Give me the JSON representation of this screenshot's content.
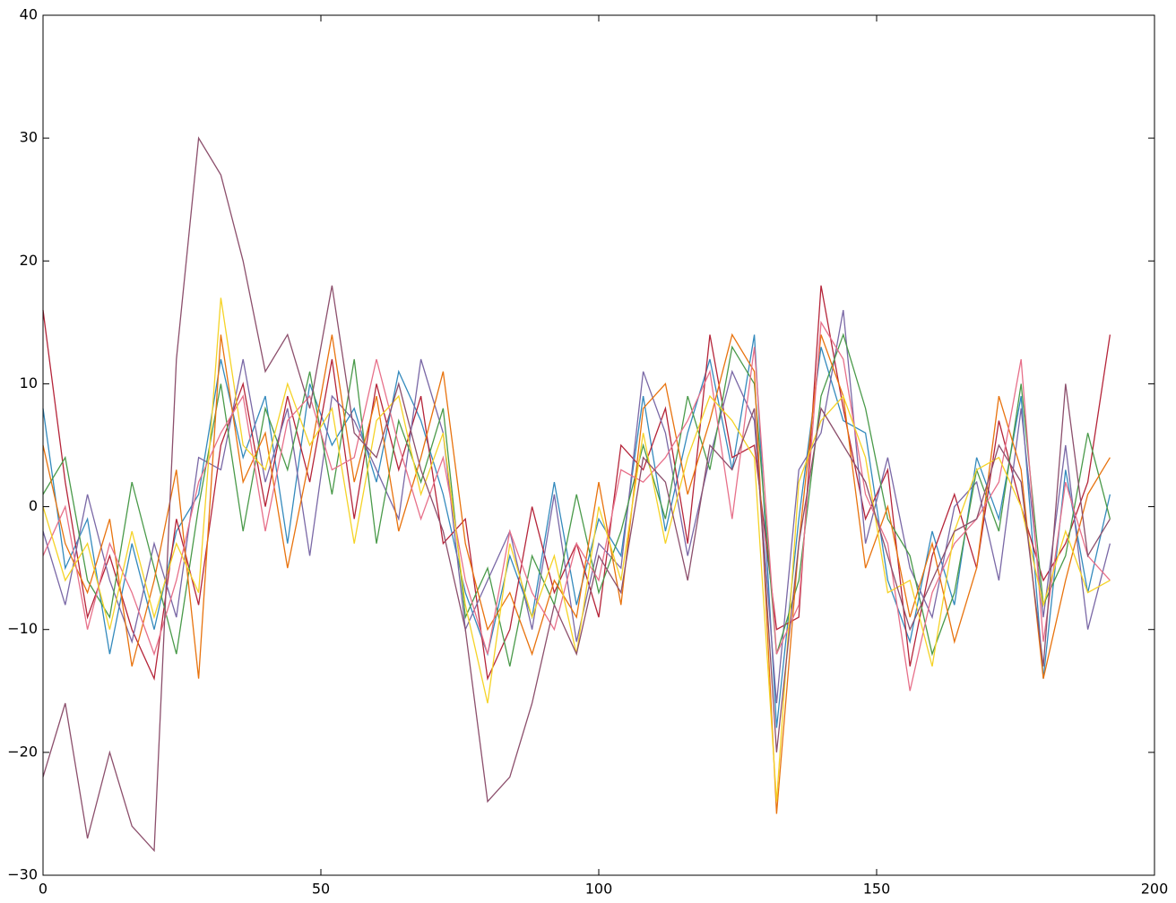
{
  "chart_data": {
    "type": "line",
    "x": [
      0,
      4,
      8,
      12,
      16,
      20,
      24,
      28,
      32,
      36,
      40,
      44,
      48,
      52,
      56,
      60,
      64,
      68,
      72,
      76,
      80,
      84,
      88,
      92,
      96,
      100,
      104,
      108,
      112,
      116,
      120,
      124,
      128,
      132,
      136,
      140,
      144,
      148,
      152,
      156,
      160,
      164,
      168,
      172,
      176,
      180,
      184,
      188,
      192
    ],
    "series": [
      {
        "color": "#348ABD",
        "values": [
          8,
          -5,
          -1,
          -12,
          -3,
          -10,
          -2,
          1,
          12,
          4,
          9,
          -3,
          10,
          5,
          8,
          2,
          11,
          7,
          1,
          -7,
          -12,
          -4,
          -9,
          2,
          -8,
          -1,
          -4,
          9,
          -2,
          6,
          12,
          3,
          14,
          -18,
          -1,
          13,
          7,
          6,
          -6,
          -11,
          -2,
          -8,
          4,
          -1,
          9,
          -14,
          3,
          -7,
          1
        ]
      },
      {
        "color": "#B5253A",
        "values": [
          16,
          2,
          -9,
          -4,
          -10,
          -14,
          -1,
          -8,
          5,
          10,
          0,
          9,
          2,
          12,
          -1,
          10,
          3,
          9,
          -3,
          -1,
          -14,
          -10,
          0,
          -7,
          -3,
          -9,
          5,
          3,
          8,
          -3,
          14,
          4,
          5,
          -10,
          -9,
          18,
          8,
          -1,
          3,
          -13,
          -4,
          1,
          -5,
          7,
          0,
          -6,
          -3,
          2,
          14
        ]
      },
      {
        "color": "#7A68A6",
        "values": [
          -2,
          -8,
          1,
          -6,
          -11,
          -3,
          -9,
          4,
          3,
          12,
          2,
          8,
          -4,
          9,
          7,
          3,
          -1,
          12,
          6,
          -10,
          -6,
          -2,
          -10,
          1,
          -11,
          -3,
          -5,
          11,
          6,
          -4,
          4,
          11,
          7,
          -16,
          3,
          6,
          16,
          -3,
          4,
          -5,
          -9,
          0,
          2,
          -6,
          8,
          -9,
          5,
          -10,
          -3
        ]
      },
      {
        "color": "#4A9A4A",
        "values": [
          1,
          4,
          -6,
          -9,
          2,
          -5,
          -12,
          0,
          10,
          -2,
          8,
          3,
          11,
          1,
          12,
          -3,
          7,
          2,
          8,
          -9,
          -5,
          -13,
          -4,
          -8,
          1,
          -7,
          -2,
          5,
          -1,
          9,
          3,
          13,
          10,
          -12,
          -6,
          9,
          14,
          8,
          -1,
          -4,
          -12,
          -7,
          3,
          -2,
          10,
          -8,
          -4,
          6,
          -1
        ]
      },
      {
        "color": "#E8730E",
        "values": [
          5,
          -3,
          -7,
          -1,
          -13,
          -6,
          3,
          -14,
          14,
          2,
          6,
          -5,
          4,
          14,
          2,
          9,
          -2,
          4,
          11,
          -3,
          -10,
          -7,
          -12,
          -6,
          -9,
          2,
          -8,
          8,
          10,
          1,
          7,
          14,
          11,
          -25,
          -3,
          14,
          9,
          -5,
          0,
          -9,
          -3,
          -11,
          -5,
          9,
          3,
          -14,
          -6,
          1,
          4
        ]
      },
      {
        "color": "#E7708A",
        "values": [
          -4,
          0,
          -10,
          -3,
          -7,
          -12,
          -6,
          2,
          6,
          9,
          -2,
          7,
          9,
          3,
          4,
          12,
          5,
          -1,
          4,
          -6,
          -12,
          -2,
          -7,
          -10,
          -3,
          -6,
          3,
          2,
          4,
          7,
          11,
          -1,
          13,
          -12,
          -8,
          15,
          12,
          1,
          -3,
          -15,
          -7,
          -3,
          -1,
          2,
          12,
          -11,
          2,
          -4,
          -6
        ]
      },
      {
        "color": "#F5D327",
        "values": [
          0,
          -6,
          -3,
          -10,
          -2,
          -9,
          -3,
          -7,
          17,
          5,
          3,
          10,
          5,
          8,
          -3,
          7,
          9,
          1,
          6,
          -8,
          -16,
          -3,
          -9,
          -4,
          -12,
          0,
          -6,
          6,
          -3,
          4,
          9,
          7,
          4,
          -24,
          2,
          7,
          9,
          4,
          -7,
          -6,
          -13,
          -2,
          3,
          4,
          0,
          -8,
          -2,
          -7,
          -6
        ]
      },
      {
        "color": "#8C4F6C",
        "values": [
          -22,
          -16,
          -27,
          -20,
          -26,
          -28,
          12,
          30,
          27,
          20,
          11,
          14,
          8,
          18,
          6,
          4,
          10,
          3,
          -2,
          -10,
          -24,
          -22,
          -16,
          -8,
          -12,
          -4,
          -7,
          4,
          2,
          -6,
          5,
          3,
          8,
          -20,
          -3,
          8,
          5,
          2,
          -4,
          -10,
          -6,
          -2,
          -1,
          5,
          2,
          -13,
          10,
          -4,
          -1
        ]
      }
    ],
    "xlim": [
      0,
      200
    ],
    "xticks": [
      0,
      50,
      100,
      150,
      200
    ],
    "ylim": [
      -30,
      40
    ],
    "yticks": [
      {
        "value": -30,
        "label": "−30"
      },
      {
        "value": -20,
        "label": "−20"
      },
      {
        "value": -10,
        "label": "−10"
      },
      0,
      10,
      20,
      30,
      40
    ]
  }
}
